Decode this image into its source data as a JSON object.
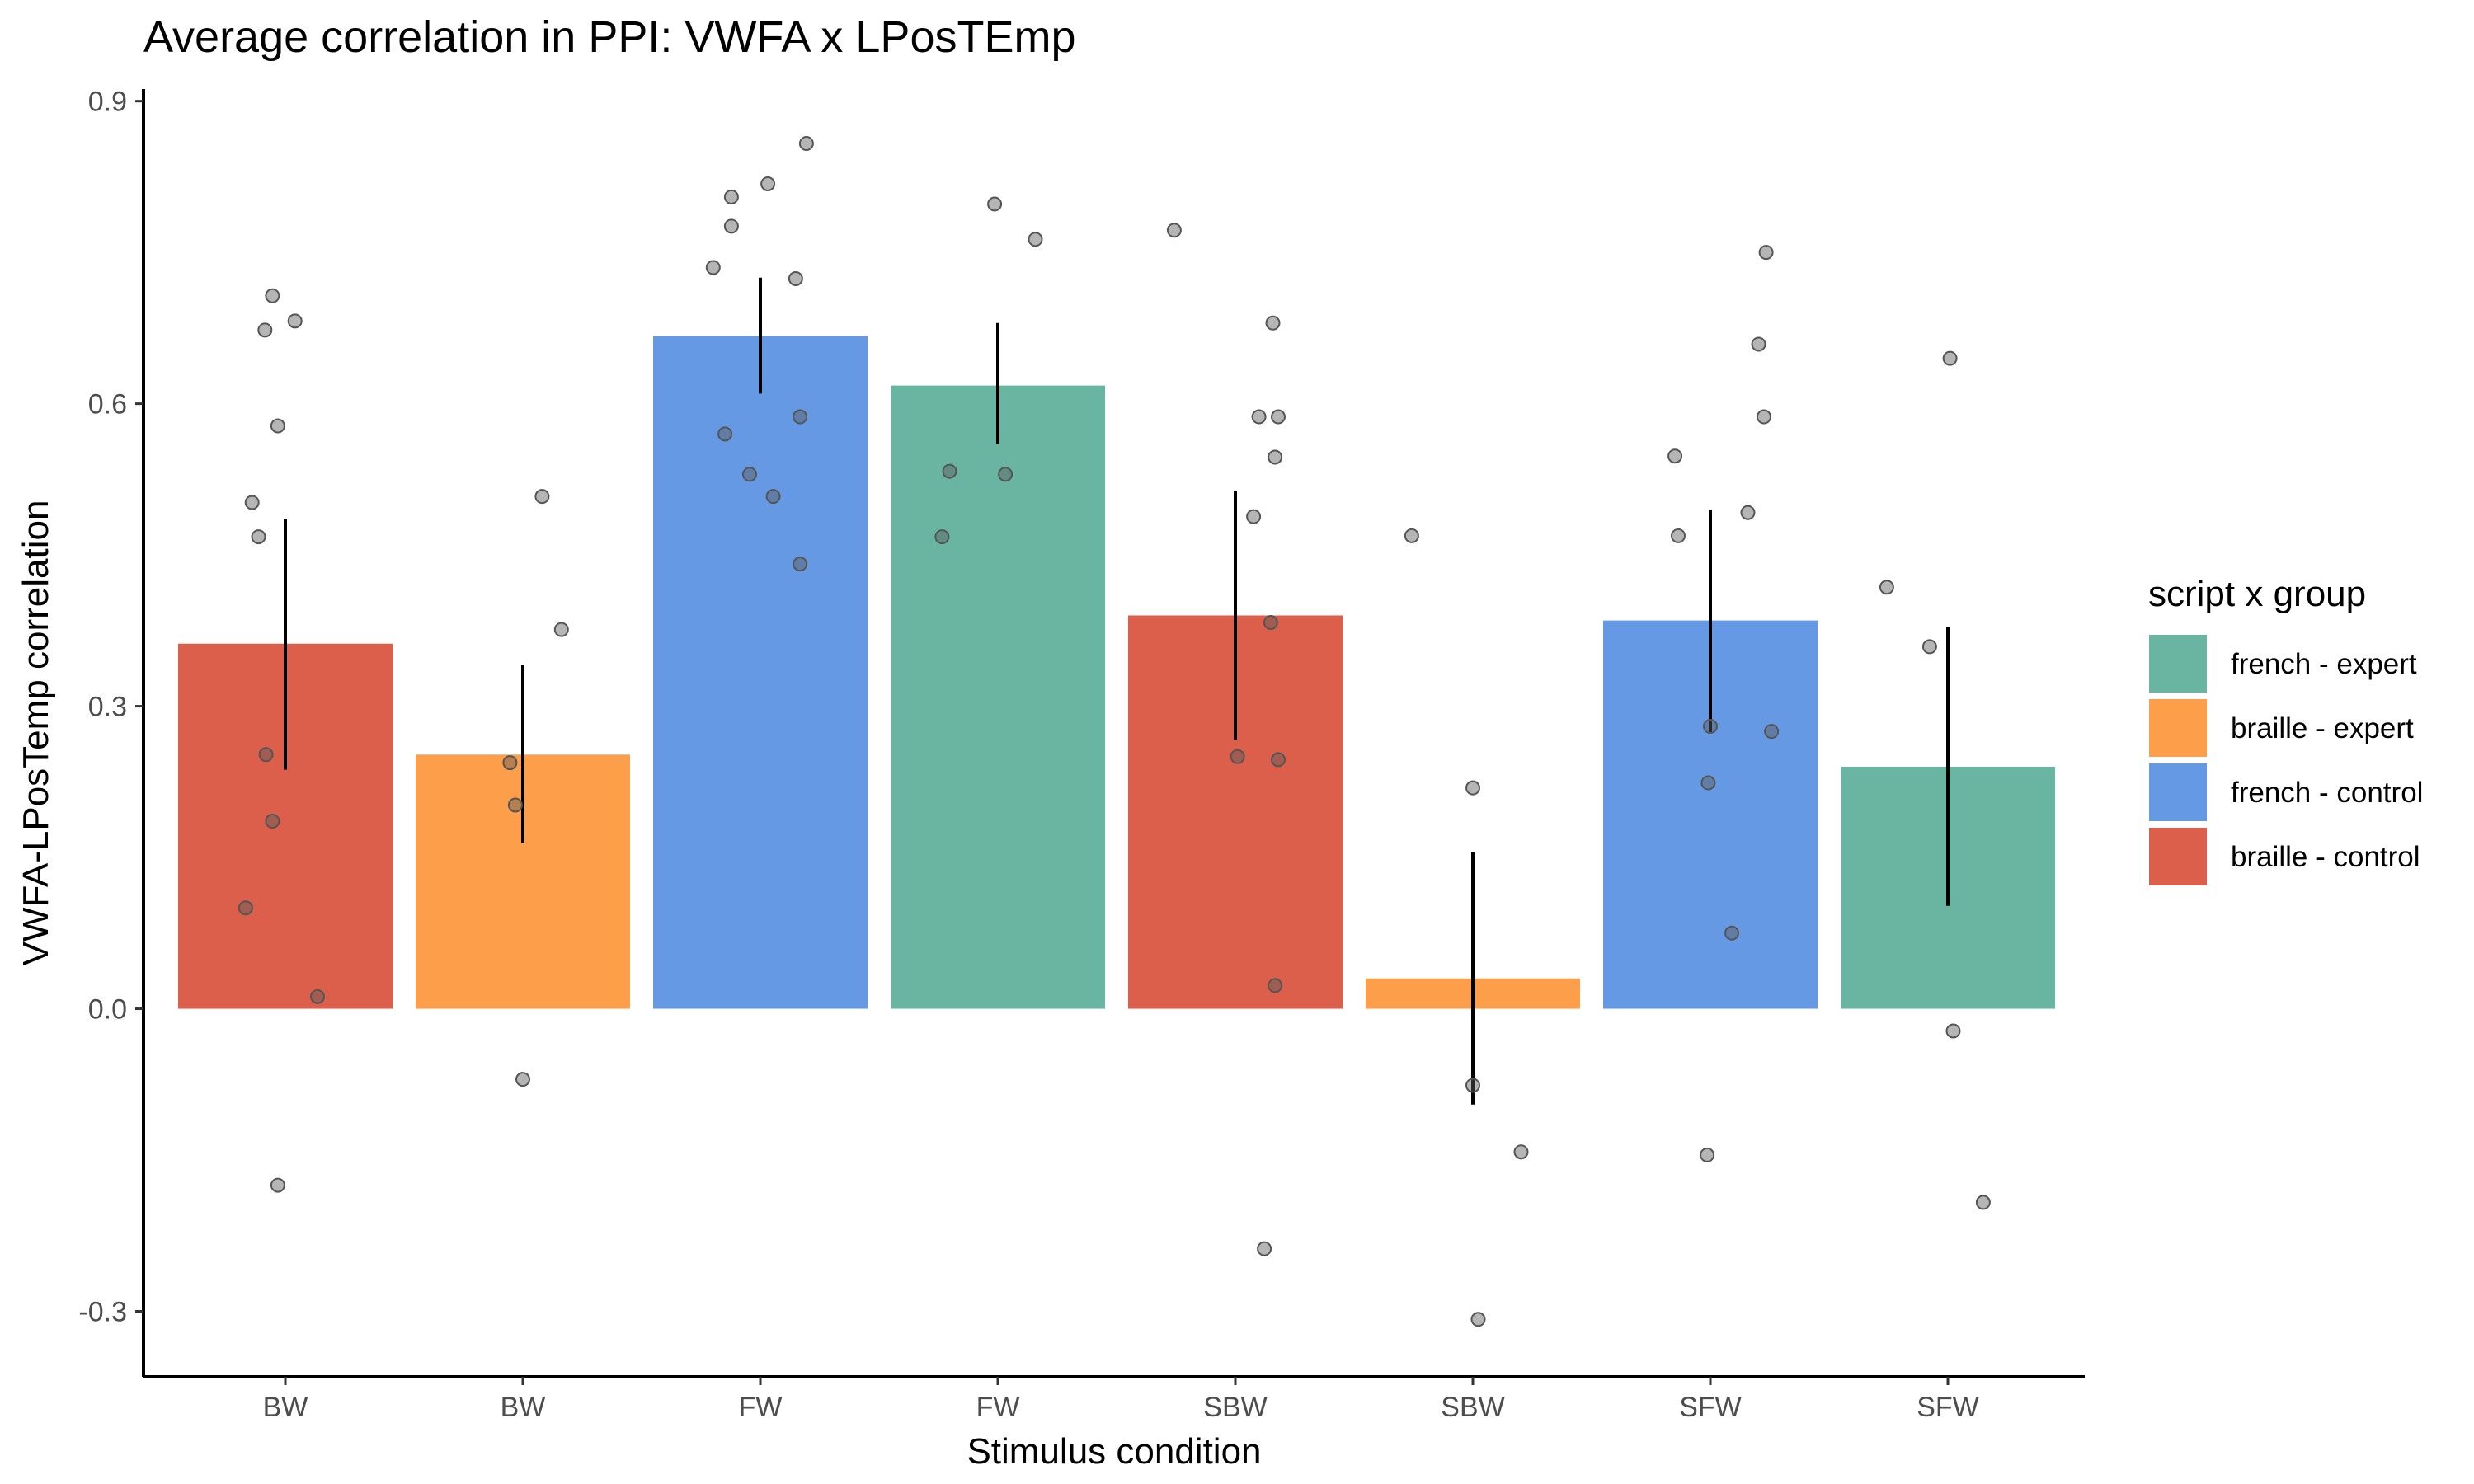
{
  "chart_data": {
    "type": "bar",
    "title": "Average correlation in PPI: VWFA x LPosTEmp",
    "xlabel": "Stimulus condition",
    "ylabel": "VWFA-LPosTemp correlation",
    "ylim": [
      -0.365,
      0.912
    ],
    "yticks": [
      -0.3,
      0.0,
      0.3,
      0.6,
      0.9
    ],
    "ytick_labels": [
      "-0.3",
      "0.0",
      "0.3",
      "0.6",
      "0.9"
    ],
    "grid": false,
    "legend": {
      "title": "script x group",
      "placement": "right",
      "entries": [
        {
          "label": "french - expert",
          "color": "#69b5a2"
        },
        {
          "label": "braille - expert",
          "color": "#fd9e4a"
        },
        {
          "label": "french - control",
          "color": "#6699e3"
        },
        {
          "label": "braille - control",
          "color": "#db5f4b"
        }
      ]
    },
    "categories": [
      "BW",
      "BW",
      "FW",
      "FW",
      "SBW",
      "SBW",
      "SFW",
      "SFW"
    ],
    "bars": [
      {
        "category": "BW",
        "group": "braille - control",
        "value": 0.362,
        "err_low": 0.237,
        "err_high": 0.486,
        "points": [
          [
            -0.12,
            0.707
          ],
          [
            -0.19,
            0.673
          ],
          [
            0.09,
            0.682
          ],
          [
            -0.07,
            0.578
          ],
          [
            -0.31,
            0.502
          ],
          [
            -0.25,
            0.468
          ],
          [
            -0.18,
            0.252
          ],
          [
            -0.12,
            0.186
          ],
          [
            -0.37,
            0.1
          ],
          [
            0.3,
            0.012
          ],
          [
            -0.07,
            -0.175
          ]
        ]
      },
      {
        "category": "BW",
        "group": "braille - expert",
        "value": 0.252,
        "err_low": 0.164,
        "err_high": 0.341,
        "points": [
          [
            0.18,
            0.508
          ],
          [
            0.36,
            0.376
          ],
          [
            -0.12,
            0.244
          ],
          [
            -0.07,
            0.202
          ],
          [
            0.0,
            -0.07
          ]
        ]
      },
      {
        "category": "FW",
        "group": "french - control",
        "value": 0.667,
        "err_low": 0.61,
        "err_high": 0.725,
        "points": [
          [
            0.43,
            0.858
          ],
          [
            -0.27,
            0.805
          ],
          [
            0.07,
            0.818
          ],
          [
            -0.27,
            0.776
          ],
          [
            -0.44,
            0.735
          ],
          [
            0.33,
            0.724
          ],
          [
            -0.33,
            0.57
          ],
          [
            0.37,
            0.587
          ],
          [
            -0.1,
            0.53
          ],
          [
            0.12,
            0.508
          ],
          [
            0.37,
            0.441
          ]
        ]
      },
      {
        "category": "FW",
        "group": "french - expert",
        "value": 0.618,
        "err_low": 0.56,
        "err_high": 0.68,
        "points": [
          [
            -0.03,
            0.798
          ],
          [
            0.35,
            0.763
          ],
          [
            -0.45,
            0.533
          ],
          [
            0.07,
            0.53
          ],
          [
            -0.52,
            0.468
          ]
        ]
      },
      {
        "category": "SBW",
        "group": "braille - control",
        "value": 0.39,
        "err_low": 0.267,
        "err_high": 0.513,
        "points": [
          [
            -0.57,
            0.772
          ],
          [
            0.35,
            0.68
          ],
          [
            0.22,
            0.587
          ],
          [
            0.4,
            0.587
          ],
          [
            0.37,
            0.547
          ],
          [
            0.17,
            0.488
          ],
          [
            0.33,
            0.383
          ],
          [
            0.02,
            0.25
          ],
          [
            0.4,
            0.247
          ],
          [
            0.37,
            0.023
          ],
          [
            0.27,
            -0.238
          ]
        ]
      },
      {
        "category": "SBW",
        "group": "braille - expert",
        "value": 0.03,
        "err_low": -0.095,
        "err_high": 0.155,
        "points": [
          [
            -0.57,
            0.469
          ],
          [
            0.0,
            0.219
          ],
          [
            0.0,
            -0.076
          ],
          [
            0.45,
            -0.142
          ],
          [
            0.05,
            -0.308
          ]
        ]
      },
      {
        "category": "SFW",
        "group": "french - control",
        "value": 0.385,
        "err_low": 0.274,
        "err_high": 0.495,
        "points": [
          [
            0.52,
            0.75
          ],
          [
            0.45,
            0.659
          ],
          [
            0.5,
            0.587
          ],
          [
            -0.33,
            0.548
          ],
          [
            0.35,
            0.492
          ],
          [
            -0.3,
            0.469
          ],
          [
            0.0,
            0.28
          ],
          [
            0.57,
            0.275
          ],
          [
            -0.02,
            0.224
          ],
          [
            0.2,
            0.075
          ],
          [
            -0.03,
            -0.145
          ]
        ]
      },
      {
        "category": "SFW",
        "group": "french - expert",
        "value": 0.24,
        "err_low": 0.102,
        "err_high": 0.379,
        "points": [
          [
            0.02,
            0.645
          ],
          [
            -0.57,
            0.418
          ],
          [
            -0.17,
            0.359
          ],
          [
            0.05,
            -0.022
          ],
          [
            0.33,
            -0.192
          ]
        ]
      }
    ]
  }
}
